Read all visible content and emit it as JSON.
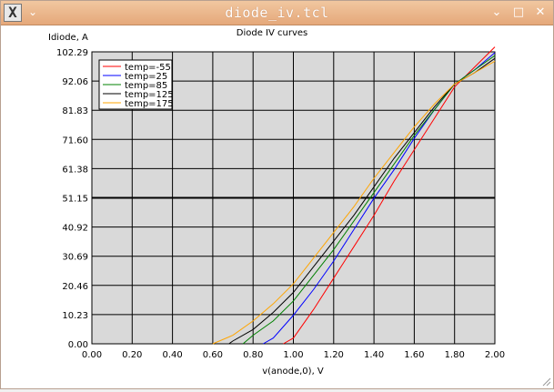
{
  "window": {
    "title": "diode_iv.tcl",
    "app_icon_glyph": "X",
    "menu_glyph": "⌄",
    "minimize_glyph": "⌄",
    "maximize_glyph": "□",
    "close_glyph": "✕"
  },
  "chart_data": {
    "type": "line",
    "title": "Diode IV curves",
    "xlabel": "v(anode,0), V",
    "ylabel": "Idiode, A",
    "xlim": [
      0,
      2
    ],
    "ylim": [
      0,
      102.29
    ],
    "xticks": [
      "0.00",
      "0.20",
      "0.40",
      "0.60",
      "0.80",
      "1.00",
      "1.20",
      "1.40",
      "1.60",
      "1.80",
      "2.00"
    ],
    "yticks": [
      "0.00",
      "10.23",
      "20.46",
      "30.69",
      "40.92",
      "51.15",
      "61.38",
      "71.60",
      "81.83",
      "92.06",
      "102.29"
    ],
    "grid": true,
    "highlight_y": 51.15,
    "legend_position": "top-left",
    "series": [
      {
        "name": "temp=-55",
        "color": "#ff0000",
        "x": [
          0.95,
          1.0,
          1.1,
          1.2,
          1.3,
          1.4,
          1.5,
          1.6,
          1.7,
          1.8,
          1.9,
          2.0
        ],
        "y": [
          0,
          2,
          12,
          23,
          34,
          45,
          57,
          68,
          79,
          90,
          97,
          104
        ]
      },
      {
        "name": "temp=25",
        "color": "#0000ff",
        "x": [
          0.85,
          0.9,
          1.0,
          1.1,
          1.2,
          1.3,
          1.4,
          1.5,
          1.6,
          1.7,
          1.8,
          1.9,
          2.0
        ],
        "y": [
          0,
          2,
          10,
          19,
          29,
          40,
          51,
          61,
          72,
          82,
          91,
          96,
          102
        ]
      },
      {
        "name": "temp=85",
        "color": "#008000",
        "x": [
          0.75,
          0.8,
          0.9,
          1.0,
          1.1,
          1.2,
          1.3,
          1.4,
          1.5,
          1.6,
          1.7,
          1.8,
          1.9,
          2.0
        ],
        "y": [
          0,
          3,
          8,
          15,
          24,
          33,
          43,
          53,
          63,
          73,
          82,
          91,
          96,
          101
        ]
      },
      {
        "name": "temp=125",
        "color": "#000000",
        "x": [
          0.68,
          0.7,
          0.8,
          0.9,
          1.0,
          1.1,
          1.2,
          1.3,
          1.4,
          1.5,
          1.6,
          1.7,
          1.8,
          1.9,
          2.0
        ],
        "y": [
          0,
          1,
          5,
          11,
          18,
          27,
          36,
          45,
          55,
          65,
          74,
          83,
          91,
          95,
          100
        ]
      },
      {
        "name": "temp=175",
        "color": "#ffa500",
        "x": [
          0.6,
          0.7,
          0.8,
          0.9,
          1.0,
          1.1,
          1.2,
          1.3,
          1.4,
          1.5,
          1.6,
          1.7,
          1.8,
          1.9,
          2.0
        ],
        "y": [
          0,
          3,
          8,
          14,
          21,
          30,
          39,
          48,
          58,
          67,
          76,
          84,
          91,
          95,
          99
        ]
      }
    ]
  }
}
